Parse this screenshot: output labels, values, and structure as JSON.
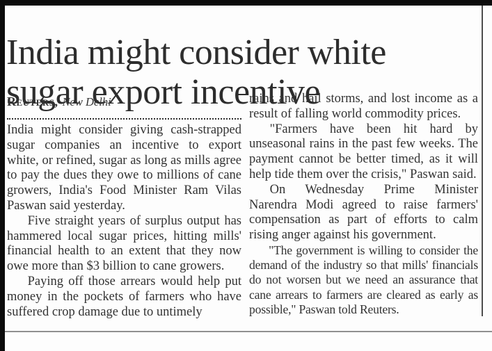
{
  "article": {
    "headline_line1": "India might consider white",
    "headline_line2": "sugar export incentive",
    "byline": {
      "agency": "Reuters,",
      "location": "New Delhi"
    },
    "left_column": [
      {
        "text": "India might consider giving cash-strapped sugar companies an incentive to export white, or refined, sugar as long as mills agree to pay the dues they owe to millions of cane growers, India's Food Minister Ram Vilas Paswan said yesterday.",
        "indent": false,
        "condensed": false
      },
      {
        "text": "Five straight years of surplus output has hammered local sugar prices, hitting mills' financial health to an extent that they now owe more than $3 billion to cane growers.",
        "indent": true,
        "condensed": false
      },
      {
        "text": "Paying off those arrears would help put money in the pockets of farmers who have suffered crop damage due to untimely",
        "indent": true,
        "condensed": false
      }
    ],
    "right_column": [
      {
        "text": "rains and hail storms, and lost income as a result of falling world commodity prices.",
        "indent": false,
        "condensed": false
      },
      {
        "text": "\"Farmers have been hit hard by unseasonal rains in the past few weeks. The payment cannot be better timed, as it will help tide them over the crisis,\" Paswan said.",
        "indent": true,
        "condensed": false
      },
      {
        "text": "On Wednesday Prime Minister Narendra Modi agreed to raise farmers' compensation as part of efforts to calm rising anger against his government.",
        "indent": true,
        "condensed": false
      },
      {
        "text": "\"The government is willing to consider the demand of the industry so that mills' financials do not worsen but we need an assurance that cane arrears to farmers are cleared as early as possible,\" Paswan told Reuters.",
        "indent": true,
        "condensed": true
      }
    ]
  },
  "colors": {
    "page_background": "#fdfdfd",
    "edge_bars": "#0b0b0b",
    "headline_text": "#2d2d2d",
    "body_text": "#333333",
    "column_rule": "#4d4d4d",
    "bottom_rule": "#8f8f8f"
  }
}
